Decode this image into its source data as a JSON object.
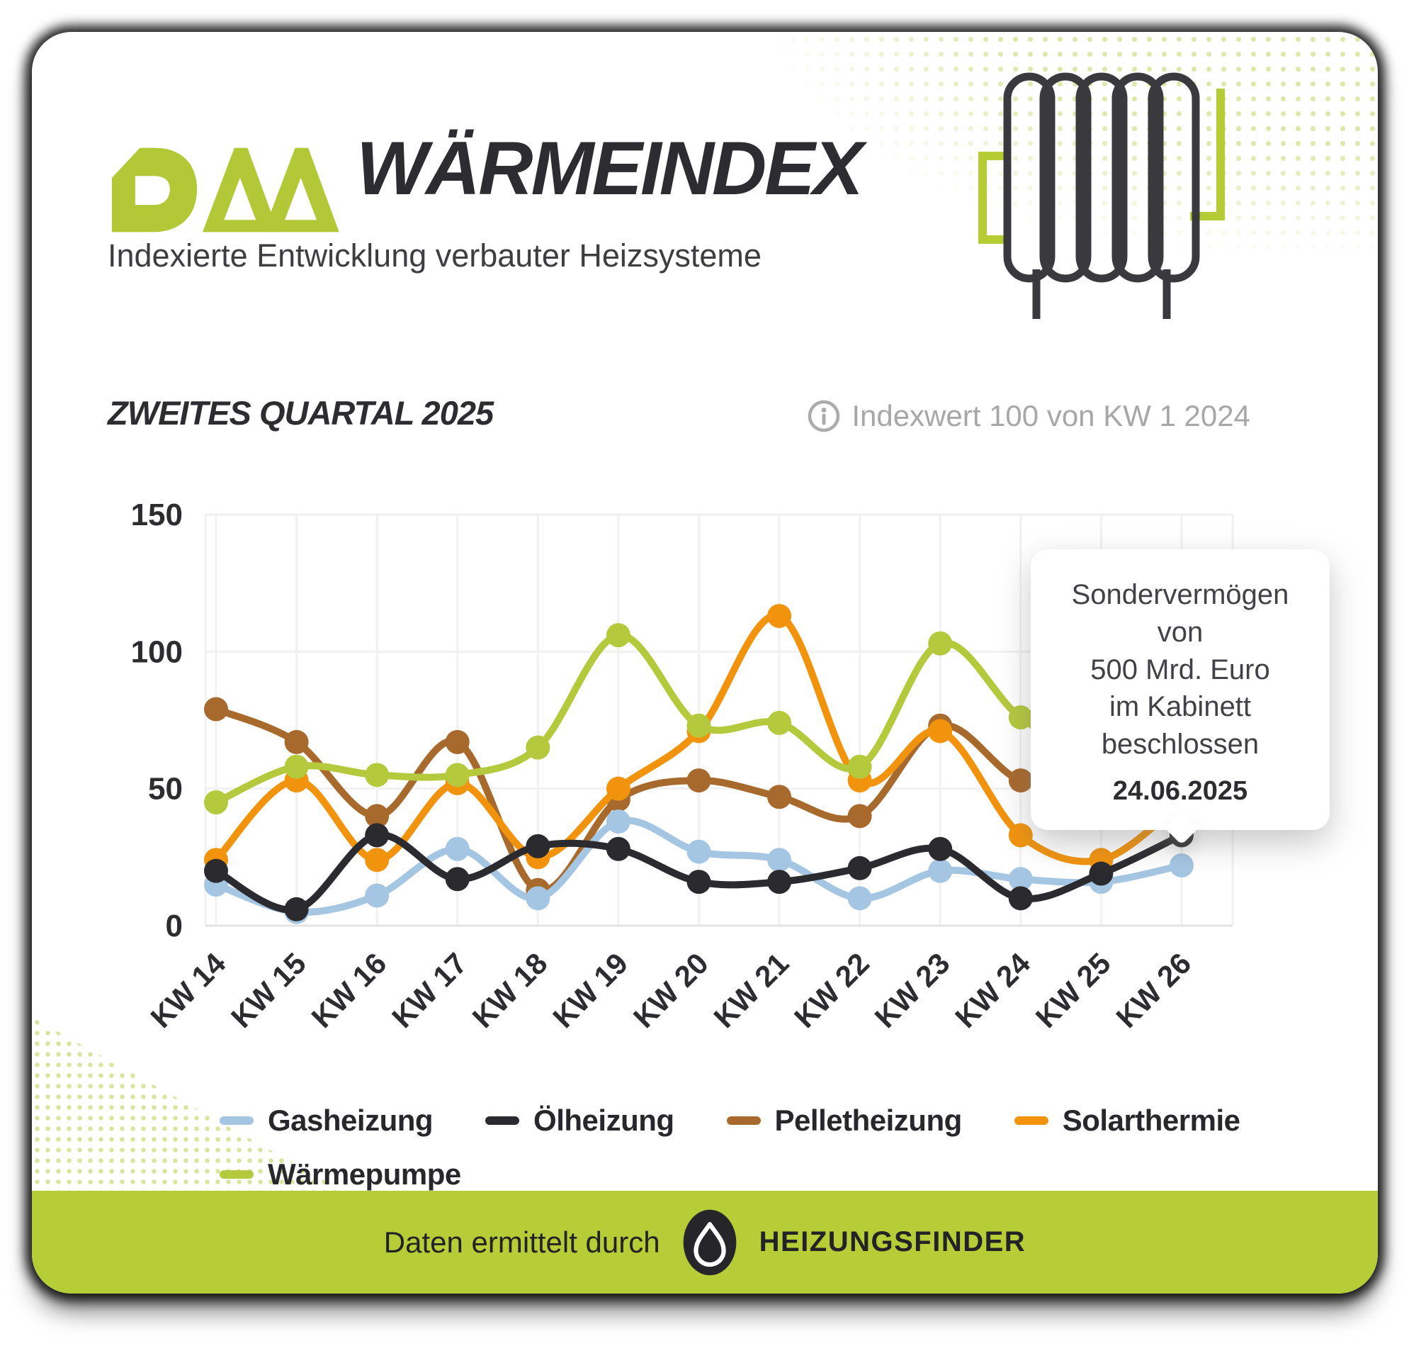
{
  "header": {
    "brand": "DAA",
    "title": "WÄRMEINDEX",
    "subtitle": "Indexierte Entwicklung verbauter Heizsysteme"
  },
  "section": {
    "title": "ZWEITES QUARTAL 2025",
    "info_note": "Indexwert 100 von KW 1 2024"
  },
  "chart_data": {
    "type": "line",
    "categories": [
      "KW 14",
      "KW 15",
      "KW 16",
      "KW 17",
      "KW 18",
      "KW 19",
      "KW 20",
      "KW 21",
      "KW 22",
      "KW 23",
      "KW 24",
      "KW 25",
      "KW 26"
    ],
    "series": [
      {
        "name": "Gasheizung",
        "color": "#a5c6e3",
        "values": [
          15,
          5,
          11,
          28,
          10,
          38,
          27,
          24,
          10,
          20,
          17,
          16,
          22
        ]
      },
      {
        "name": "Ölheizung",
        "color": "#2b2b2f",
        "values": [
          20,
          6,
          33,
          17,
          29,
          28,
          16,
          16,
          21,
          28,
          10,
          19,
          33
        ]
      },
      {
        "name": "Pelletheizung",
        "color": "#a8692c",
        "values": [
          79,
          67,
          40,
          67,
          13,
          46,
          53,
          47,
          40,
          73,
          53,
          53,
          53
        ]
      },
      {
        "name": "Solarthermie",
        "color": "#f2930d",
        "values": [
          24,
          53,
          24,
          52,
          25,
          50,
          71,
          113,
          53,
          71,
          33,
          24,
          45
        ]
      },
      {
        "name": "Wärmepumpe",
        "color": "#b5c93d",
        "values": [
          45,
          58,
          55,
          55,
          65,
          106,
          73,
          74,
          58,
          103,
          76,
          62,
          78
        ]
      }
    ],
    "ylim": [
      0,
      150
    ],
    "yticks": [
      0,
      50,
      100,
      150
    ],
    "xlabel": "",
    "ylabel": "",
    "grid": true,
    "legend_position": "bottom",
    "annotation": {
      "lines": [
        "Sondervermögen von",
        "500 Mrd. Euro",
        "im Kabinett beschlossen"
      ],
      "date": "24.06.2025",
      "anchor_category": "KW 26"
    }
  },
  "footer": {
    "attribution": "Daten ermittelt durch",
    "brand": "HEIZUNGSFINDER"
  },
  "colors": {
    "accent_green": "#b6cd37",
    "dark_ink": "#2d2d31",
    "grid_line": "#f1f1f1",
    "axis_line": "#e4e4e4",
    "muted_gray": "#a7a7a9"
  }
}
